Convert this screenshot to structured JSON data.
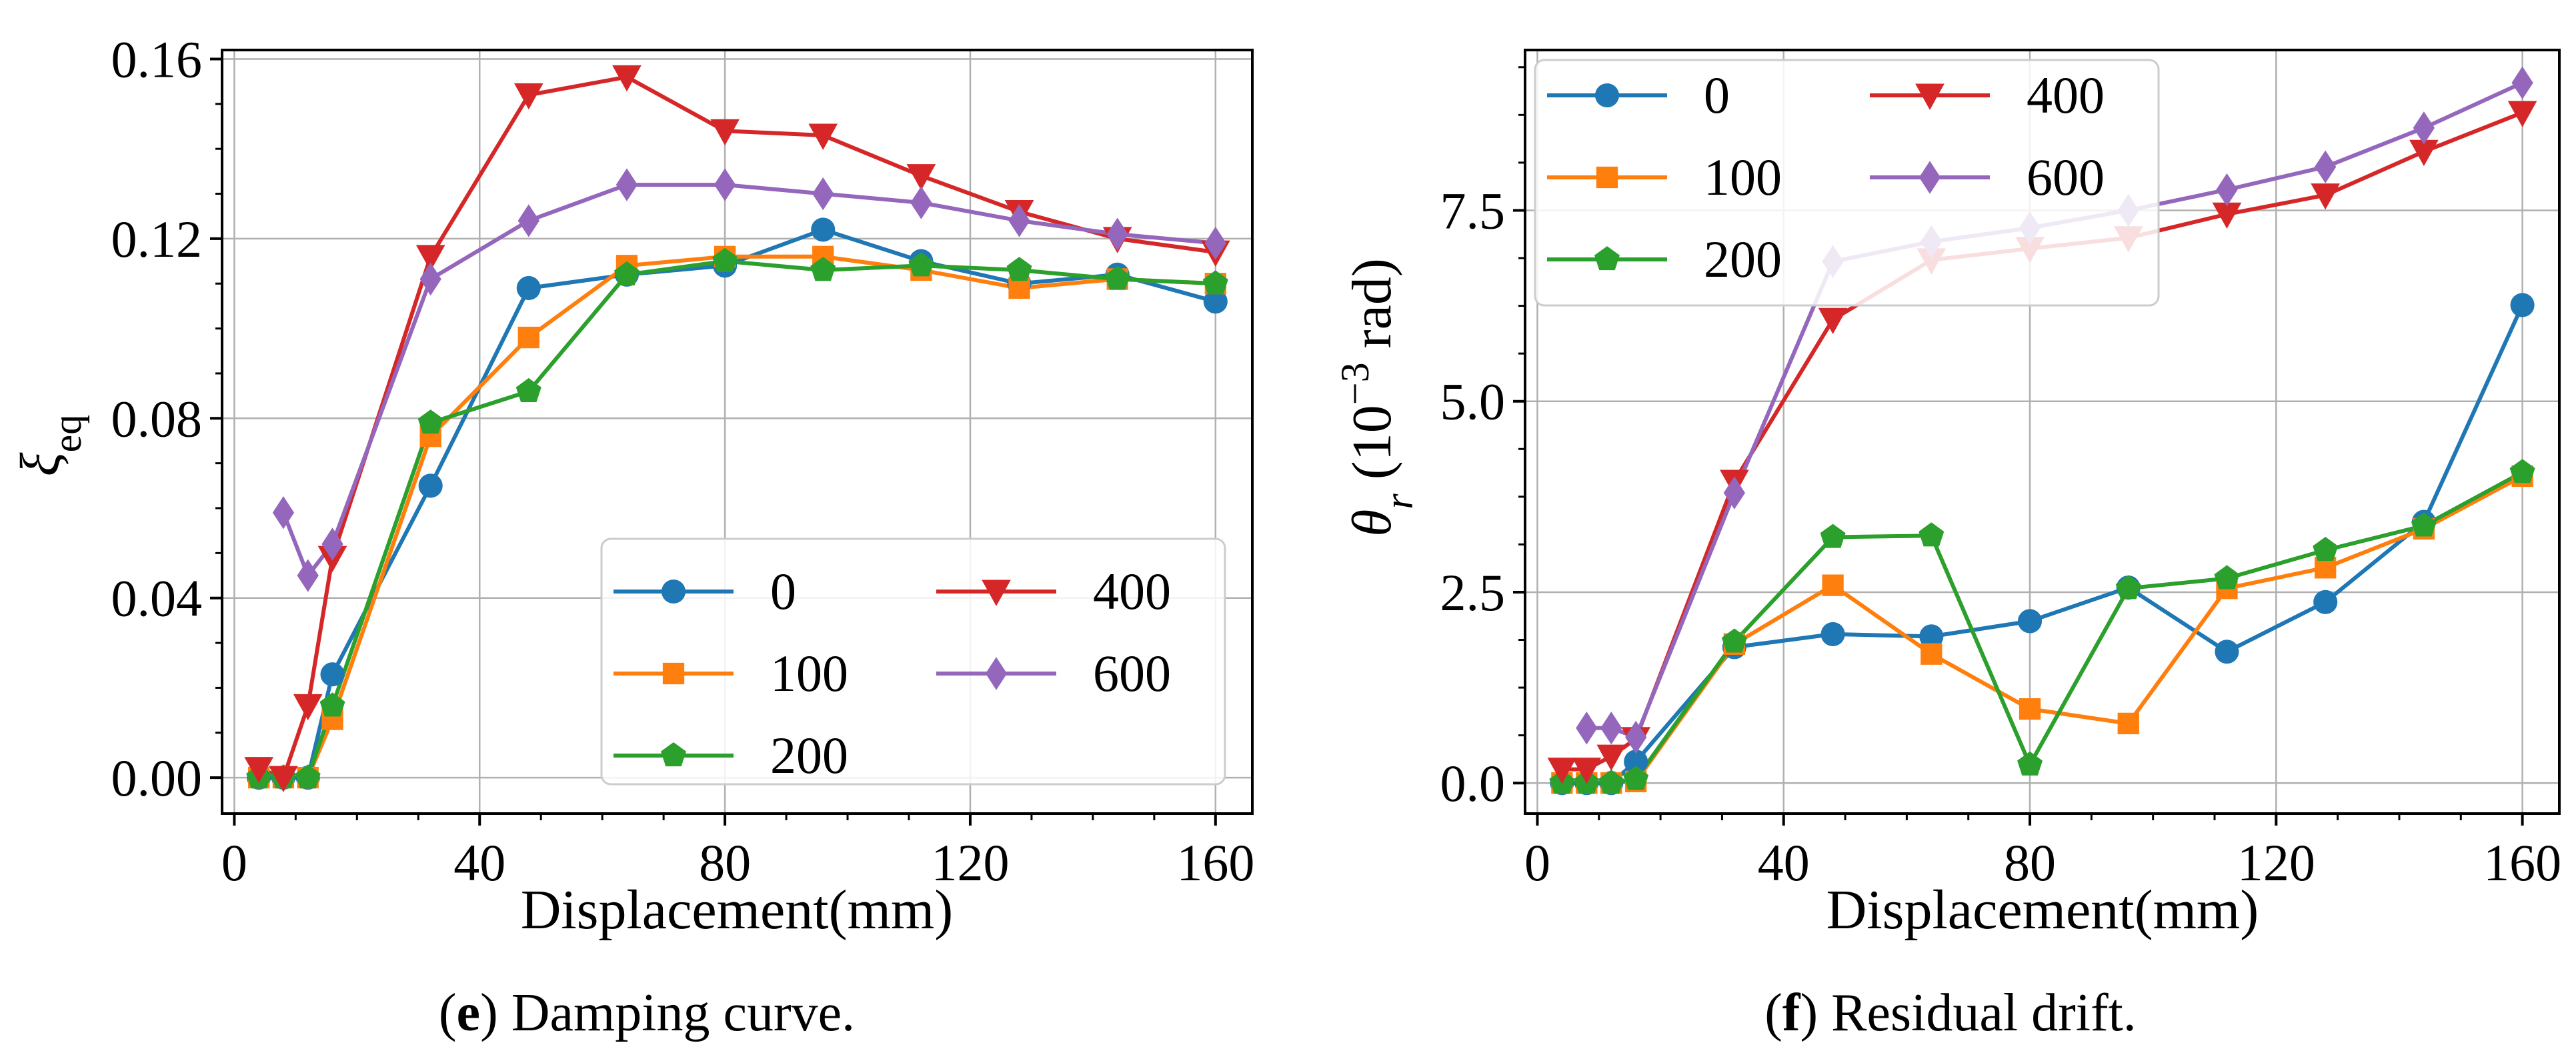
{
  "figure": {
    "captions": [
      {
        "letter": "e",
        "prefix": "(",
        "suffix": ") Damping curve."
      },
      {
        "letter": "f",
        "prefix": "(",
        "suffix": ") Residual drift."
      }
    ]
  },
  "colors": {
    "0": "#1f77b4",
    "100": "#ff7f0e",
    "200": "#2ca02c",
    "400": "#d62728",
    "600": "#9467bd"
  },
  "chart_data": [
    {
      "type": "line",
      "title": "",
      "xlabel": "Displacement(mm)",
      "ylabel": "ξeq",
      "ylabel_main": "ξ",
      "ylabel_sub": "eq",
      "xlim": [
        -2,
        166
      ],
      "ylim": [
        -0.008,
        0.162
      ],
      "xticks": [
        0,
        40,
        80,
        120,
        160
      ],
      "xtick_labels": [
        "0",
        "40",
        "80",
        "120",
        "160"
      ],
      "yticks": [
        0,
        0.04,
        0.08,
        0.12,
        0.16
      ],
      "ytick_labels": [
        "0.00",
        "0.04",
        "0.08",
        "0.12",
        "0.16"
      ],
      "grid": true,
      "legend_position": "lower-right",
      "legend_columns": 2,
      "x": [
        4,
        8,
        12,
        16,
        32,
        48,
        64,
        80,
        96,
        112,
        128,
        144,
        160
      ],
      "series": [
        {
          "name": "0",
          "marker": "circle",
          "values": [
            0,
            0,
            0,
            0.023,
            0.065,
            0.109,
            0.112,
            0.114,
            0.122,
            0.115,
            0.11,
            0.112,
            0.106
          ]
        },
        {
          "name": "100",
          "marker": "square",
          "values": [
            0,
            0,
            0,
            0.013,
            0.076,
            0.098,
            0.114,
            0.116,
            0.116,
            0.113,
            0.109,
            0.111,
            0.11
          ]
        },
        {
          "name": "200",
          "marker": "pentagon",
          "values": [
            0,
            0,
            0,
            0.016,
            0.079,
            0.086,
            0.112,
            0.115,
            0.113,
            0.114,
            0.113,
            0.111,
            0.11
          ]
        },
        {
          "name": "400",
          "marker": "triangle-down",
          "values": [
            0.002,
            0,
            0.016,
            0.049,
            0.116,
            0.152,
            0.156,
            0.144,
            0.143,
            0.134,
            0.126,
            0.12,
            0.117
          ]
        },
        {
          "name": "600",
          "marker": "diamond",
          "x": [
            8,
            12,
            16,
            32,
            48,
            64,
            80,
            96,
            112,
            128,
            144,
            160
          ],
          "values": [
            0.059,
            0.045,
            0.052,
            0.111,
            0.124,
            0.132,
            0.132,
            0.13,
            0.128,
            0.124,
            0.121,
            0.119
          ]
        }
      ]
    },
    {
      "type": "line",
      "title": "",
      "xlabel": "Displacement(mm)",
      "ylabel": "θr (10−3 rad)",
      "ylabel_main": "θ",
      "ylabel_sub": "r",
      "ylabel_pre": " (10",
      "ylabel_sup": "−3",
      "ylabel_post": " rad)",
      "xlim": [
        -2,
        166
      ],
      "ylim": [
        -0.4,
        9.6
      ],
      "xticks": [
        0,
        40,
        80,
        120,
        160
      ],
      "xtick_labels": [
        "0",
        "40",
        "80",
        "120",
        "160"
      ],
      "yticks": [
        0,
        2.5,
        5,
        7.5
      ],
      "ytick_labels": [
        "0.0",
        "2.5",
        "5.0",
        "7.5"
      ],
      "grid": true,
      "legend_position": "upper-left",
      "legend_columns": 2,
      "x": [
        4,
        8,
        12,
        16,
        32,
        48,
        64,
        80,
        96,
        112,
        128,
        144,
        160
      ],
      "series": [
        {
          "name": "0",
          "marker": "circle",
          "values": [
            0,
            0,
            0,
            0.28,
            1.78,
            1.95,
            1.92,
            2.12,
            2.56,
            1.72,
            2.37,
            3.42,
            6.26
          ]
        },
        {
          "name": "100",
          "marker": "square",
          "values": [
            0,
            0,
            0,
            0.02,
            1.82,
            2.59,
            1.69,
            0.97,
            0.78,
            2.55,
            2.82,
            3.33,
            4.02
          ]
        },
        {
          "name": "200",
          "marker": "pentagon",
          "values": [
            0,
            0,
            0,
            0.05,
            1.85,
            3.22,
            3.24,
            0.24,
            2.55,
            2.68,
            3.05,
            3.37,
            4.07
          ]
        },
        {
          "name": "400",
          "marker": "triangle-down",
          "values": [
            0.18,
            0.18,
            0.35,
            0.58,
            3.95,
            6.07,
            6.85,
            7.0,
            7.14,
            7.45,
            7.7,
            8.27,
            8.78
          ]
        },
        {
          "name": "600",
          "marker": "diamond",
          "x": [
            8,
            12,
            16,
            32,
            48,
            64,
            80,
            96,
            112,
            128,
            144,
            160
          ],
          "values": [
            0.72,
            0.72,
            0.6,
            3.8,
            6.83,
            7.09,
            7.27,
            7.5,
            7.77,
            8.07,
            8.58,
            9.17
          ]
        }
      ]
    }
  ]
}
